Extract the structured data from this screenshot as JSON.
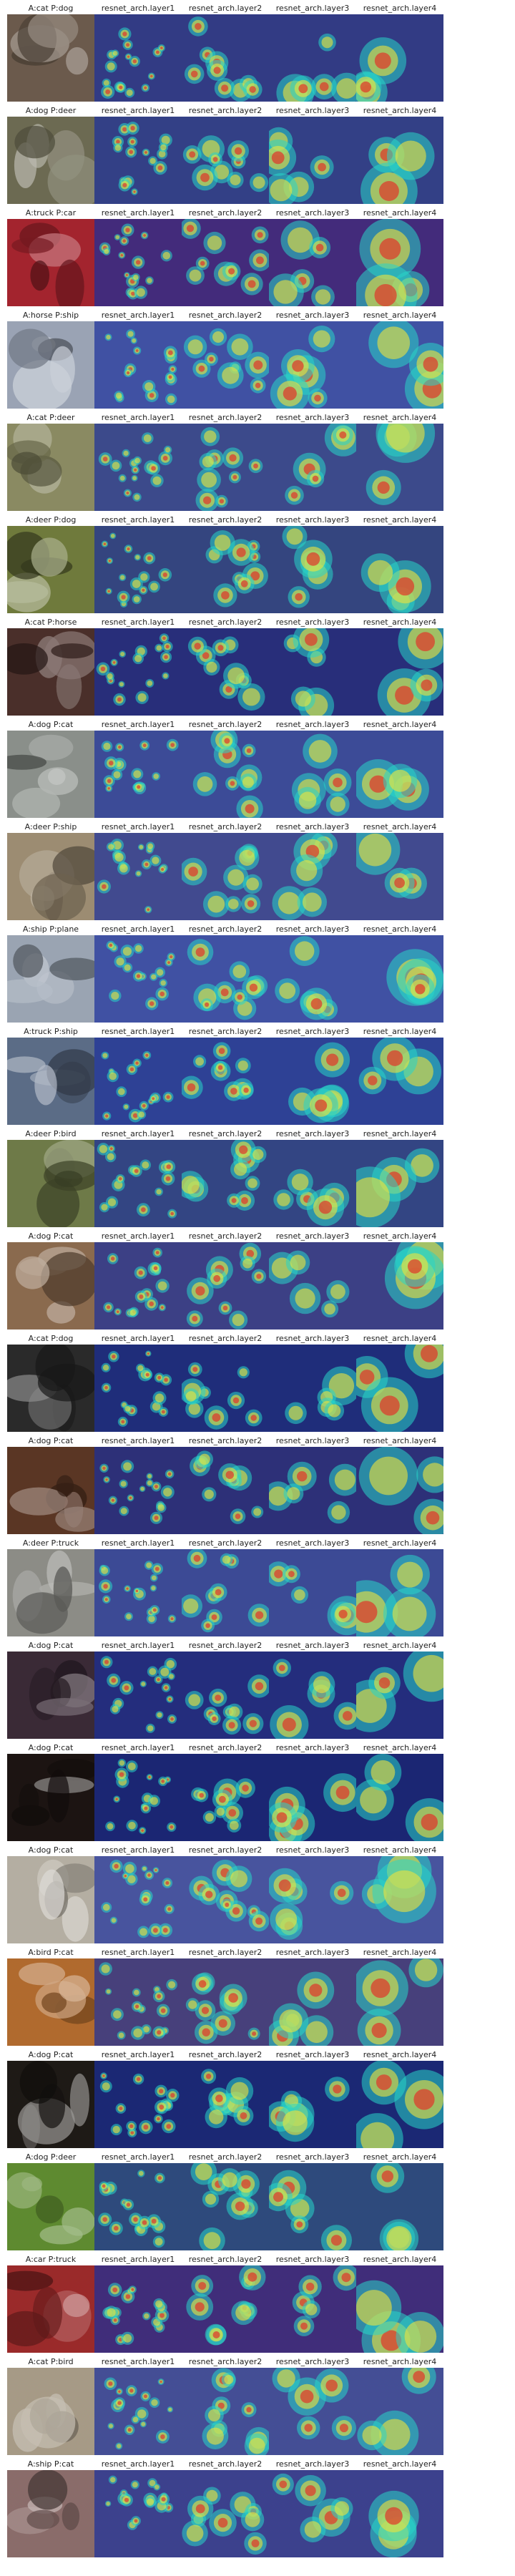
{
  "layer_titles": [
    "resnet_arch.layer1",
    "resnet_arch.layer2",
    "resnet_arch.layer3",
    "resnet_arch.layer4"
  ],
  "palette": {
    "heat_low": "#1a2e9c",
    "heat_mid": "#28d6c8",
    "heat_high": "#f0e33a",
    "heat_peak": "#e0342a"
  },
  "rows": [
    {
      "label": "A:cat P:dog",
      "photo_color": "#6b5a4c"
    },
    {
      "label": "A:dog P:deer",
      "photo_color": "#6c6a52"
    },
    {
      "label": "A:truck P:car",
      "photo_color": "#a3242e"
    },
    {
      "label": "A:horse P:ship",
      "photo_color": "#9aa3b4"
    },
    {
      "label": "A:cat P:deer",
      "photo_color": "#8a8a62"
    },
    {
      "label": "A:deer P:dog",
      "photo_color": "#6f7a3c"
    },
    {
      "label": "A:cat P:horse",
      "photo_color": "#4a2f2a"
    },
    {
      "label": "A:dog P:cat",
      "photo_color": "#8a8f8a"
    },
    {
      "label": "A:deer P:ship",
      "photo_color": "#9c8c72"
    },
    {
      "label": "A:ship P:plane",
      "photo_color": "#9aa4b2"
    },
    {
      "label": "A:truck P:ship",
      "photo_color": "#5b6c86"
    },
    {
      "label": "A:deer P:bird",
      "photo_color": "#6e7a48"
    },
    {
      "label": "A:dog P:cat",
      "photo_color": "#8a6a4e"
    },
    {
      "label": "A:cat P:dog",
      "photo_color": "#2a2a2a"
    },
    {
      "label": "A:dog P:cat",
      "photo_color": "#5a3624"
    },
    {
      "label": "A:deer P:truck",
      "photo_color": "#8c8c86"
    },
    {
      "label": "A:dog P:cat",
      "photo_color": "#3a2a36"
    },
    {
      "label": "A:dog P:cat",
      "photo_color": "#1c1412"
    },
    {
      "label": "A:dog P:cat",
      "photo_color": "#b4aea2"
    },
    {
      "label": "A:bird P:cat",
      "photo_color": "#b06a2e"
    },
    {
      "label": "A:dog P:cat",
      "photo_color": "#1e1a16"
    },
    {
      "label": "A:dog P:deer",
      "photo_color": "#5e8a30"
    },
    {
      "label": "A:car P:truck",
      "photo_color": "#9a2a2a"
    },
    {
      "label": "A:cat P:bird",
      "photo_color": "#a69a86"
    },
    {
      "label": "A:ship P:cat",
      "photo_color": "#8a6c6a"
    }
  ]
}
